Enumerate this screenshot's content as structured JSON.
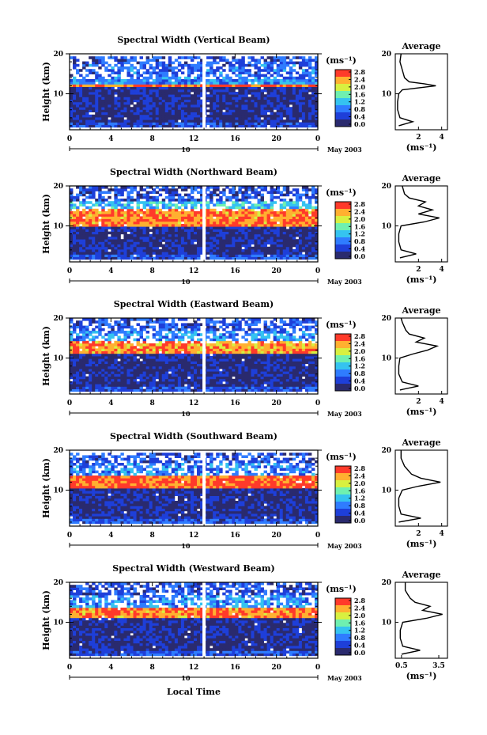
{
  "figure": {
    "xlabel": "Local Time",
    "date_label": "May 2003",
    "day_label": "10",
    "colorbar_unit": "(ms⁻¹)",
    "colorbar_ticks": [
      "2.8",
      "2.4",
      "2.0",
      "1.6",
      "1.2",
      "0.8",
      "0.4",
      "0.0"
    ],
    "average_title": "Average",
    "average_unit": "(ms⁻¹)",
    "ylabel": "Height (km)"
  },
  "colors": {
    "colorscale": [
      "#2a2a6e",
      "#1e3fd9",
      "#2f7cff",
      "#35c3f0",
      "#6ff0b0",
      "#d8f040",
      "#ffb030",
      "#ff3a2a"
    ],
    "line": "#000000"
  },
  "chart_data": [
    {
      "type": "heatmap",
      "title": "Spectral Width (Vertical Beam)",
      "x_ticks": [
        "0",
        "4",
        "8",
        "12",
        "16",
        "20",
        "0"
      ],
      "y_ticks": [
        "20",
        "10"
      ],
      "xlim": [
        0,
        24
      ],
      "ylim": [
        1,
        20
      ],
      "bands": [
        {
          "from": 1.5,
          "to": 3,
          "value": 0.6
        },
        {
          "from": 3,
          "to": 11.5,
          "value": 0.3
        },
        {
          "from": 11.5,
          "to": 12.5,
          "value": 2.9
        },
        {
          "from": 12.5,
          "to": 14,
          "value": 1.0
        },
        {
          "from": 14,
          "to": 18,
          "value": 0.8
        },
        {
          "from": 18,
          "to": 19.5,
          "value": 0.7
        }
      ],
      "average": {
        "title": "Average",
        "xticks": [
          "2",
          "4"
        ],
        "xlim": [
          0,
          4.5
        ],
        "yticks": [
          "20",
          "10"
        ],
        "profile": [
          [
            2,
            0.3
          ],
          [
            3,
            1.5
          ],
          [
            4,
            0.4
          ],
          [
            6,
            0.2
          ],
          [
            8,
            0.2
          ],
          [
            10,
            0.3
          ],
          [
            11,
            0.6
          ],
          [
            12,
            3.5
          ],
          [
            12.5,
            2.5
          ],
          [
            13,
            1.2
          ],
          [
            14,
            0.8
          ],
          [
            16,
            0.6
          ],
          [
            18,
            0.4
          ],
          [
            20,
            0.5
          ]
        ]
      }
    },
    {
      "type": "heatmap",
      "title": "Spectral Width (Northward Beam)",
      "x_ticks": [
        "0",
        "4",
        "8",
        "12",
        "16",
        "20",
        "0"
      ],
      "y_ticks": [
        "20",
        "10"
      ],
      "xlim": [
        0,
        24
      ],
      "ylim": [
        1,
        20
      ],
      "bands": [
        {
          "from": 1.5,
          "to": 3,
          "value": 0.7
        },
        {
          "from": 3,
          "to": 10,
          "value": 0.3
        },
        {
          "from": 10,
          "to": 14,
          "value": 2.8
        },
        {
          "from": 14,
          "to": 16,
          "value": 1.4
        },
        {
          "from": 16,
          "to": 20,
          "value": 0.6
        }
      ],
      "average": {
        "title": "Average",
        "xticks": [
          "2",
          "4"
        ],
        "xlim": [
          0,
          4.5
        ],
        "yticks": [
          "20",
          "10"
        ],
        "profile": [
          [
            2,
            0.4
          ],
          [
            3,
            1.8
          ],
          [
            4,
            0.5
          ],
          [
            6,
            0.3
          ],
          [
            8,
            0.3
          ],
          [
            10,
            0.5
          ],
          [
            11,
            2.5
          ],
          [
            12,
            3.8
          ],
          [
            13,
            2.0
          ],
          [
            14,
            3.2
          ],
          [
            15,
            2.0
          ],
          [
            16,
            2.6
          ],
          [
            17,
            1.2
          ],
          [
            18,
            0.8
          ],
          [
            20,
            0.6
          ]
        ]
      }
    },
    {
      "type": "heatmap",
      "title": "Spectral Width (Eastward Beam)",
      "x_ticks": [
        "0",
        "4",
        "8",
        "12",
        "16",
        "20",
        "0"
      ],
      "y_ticks": [
        "20",
        "10"
      ],
      "xlim": [
        0,
        24
      ],
      "ylim": [
        1,
        20
      ],
      "bands": [
        {
          "from": 1.5,
          "to": 3,
          "value": 0.7
        },
        {
          "from": 3,
          "to": 11,
          "value": 0.3
        },
        {
          "from": 11,
          "to": 14,
          "value": 2.7
        },
        {
          "from": 14,
          "to": 17,
          "value": 1.1
        },
        {
          "from": 17,
          "to": 20,
          "value": 0.7
        }
      ],
      "average": {
        "title": "Average",
        "xticks": [
          "2",
          "4"
        ],
        "xlim": [
          0,
          4.5
        ],
        "yticks": [
          "20",
          "10"
        ],
        "profile": [
          [
            2,
            0.4
          ],
          [
            3,
            2.0
          ],
          [
            4,
            0.6
          ],
          [
            6,
            0.3
          ],
          [
            8,
            0.3
          ],
          [
            10,
            0.4
          ],
          [
            11,
            1.5
          ],
          [
            12,
            2.8
          ],
          [
            13,
            3.6
          ],
          [
            14,
            1.8
          ],
          [
            15,
            2.5
          ],
          [
            16,
            1.2
          ],
          [
            17,
            0.9
          ],
          [
            19,
            0.6
          ],
          [
            20,
            0.5
          ]
        ]
      }
    },
    {
      "type": "heatmap",
      "title": "Spectral Width (Southward Beam)",
      "x_ticks": [
        "0",
        "4",
        "8",
        "12",
        "16",
        "20",
        "0"
      ],
      "y_ticks": [
        "20",
        "10"
      ],
      "xlim": [
        0,
        24
      ],
      "ylim": [
        1,
        20
      ],
      "bands": [
        {
          "from": 1.5,
          "to": 3,
          "value": 0.7
        },
        {
          "from": 3,
          "to": 10.5,
          "value": 0.3
        },
        {
          "from": 10.5,
          "to": 13.5,
          "value": 2.9
        },
        {
          "from": 13.5,
          "to": 17,
          "value": 1.0
        },
        {
          "from": 17,
          "to": 19.5,
          "value": 0.7
        }
      ],
      "average": {
        "title": "Average",
        "xticks": [
          "2",
          "4"
        ],
        "xlim": [
          0,
          4.5
        ],
        "yticks": [
          "20",
          "10"
        ],
        "profile": [
          [
            2,
            0.3
          ],
          [
            3,
            2.2
          ],
          [
            4,
            0.5
          ],
          [
            6,
            0.3
          ],
          [
            8,
            0.3
          ],
          [
            10,
            0.6
          ],
          [
            11,
            2.0
          ],
          [
            12,
            3.9
          ],
          [
            13,
            2.2
          ],
          [
            14,
            1.4
          ],
          [
            16,
            0.8
          ],
          [
            18,
            0.5
          ],
          [
            20,
            0.5
          ]
        ]
      }
    },
    {
      "type": "heatmap",
      "title": "Spectral Width (Westward Beam)",
      "x_ticks": [
        "0",
        "4",
        "8",
        "12",
        "16",
        "20",
        "0"
      ],
      "y_ticks": [
        "20",
        "10"
      ],
      "xlim": [
        0,
        24
      ],
      "ylim": [
        1,
        20
      ],
      "bands": [
        {
          "from": 1.5,
          "to": 3,
          "value": 0.7
        },
        {
          "from": 3,
          "to": 11,
          "value": 0.3
        },
        {
          "from": 11,
          "to": 13.5,
          "value": 2.8
        },
        {
          "from": 13.5,
          "to": 17,
          "value": 1.1
        },
        {
          "from": 17,
          "to": 20,
          "value": 0.7
        }
      ],
      "average": {
        "title": "Average",
        "xticks": [
          "0.5",
          "3.5"
        ],
        "xlim": [
          0,
          4.2
        ],
        "yticks": [
          "20",
          "10"
        ],
        "profile": [
          [
            2,
            0.5
          ],
          [
            3,
            2.0
          ],
          [
            4,
            0.6
          ],
          [
            6,
            0.4
          ],
          [
            8,
            0.4
          ],
          [
            10,
            0.6
          ],
          [
            11,
            2.5
          ],
          [
            12,
            3.8
          ],
          [
            13,
            2.2
          ],
          [
            14,
            2.8
          ],
          [
            15,
            1.6
          ],
          [
            16,
            1.2
          ],
          [
            17,
            1.0
          ],
          [
            18,
            0.8
          ],
          [
            20,
            0.8
          ]
        ]
      }
    }
  ]
}
